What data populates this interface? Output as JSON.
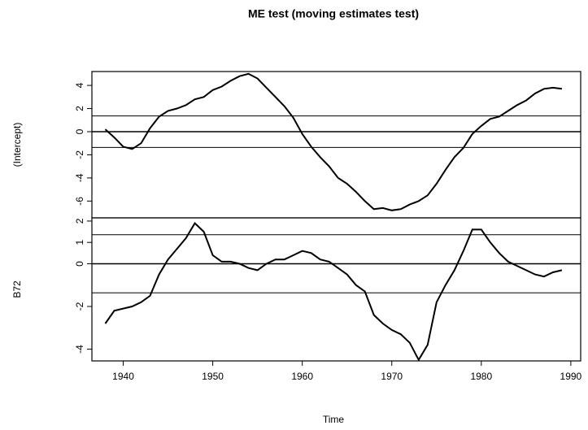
{
  "chart_data": [
    {
      "type": "line",
      "title": "ME test (moving estimates test)",
      "ylabel": "(Intercept)",
      "x": [
        1938,
        1939,
        1940,
        1941,
        1942,
        1943,
        1944,
        1945,
        1946,
        1947,
        1948,
        1949,
        1950,
        1951,
        1952,
        1953,
        1954,
        1955,
        1956,
        1957,
        1958,
        1959,
        1960,
        1961,
        1962,
        1963,
        1964,
        1965,
        1966,
        1967,
        1968,
        1969,
        1970,
        1971,
        1972,
        1973,
        1974,
        1975,
        1976,
        1977,
        1978,
        1979,
        1980,
        1981,
        1982,
        1983,
        1984,
        1985,
        1986,
        1987,
        1988,
        1989
      ],
      "series": [
        {
          "name": "(Intercept)",
          "color": "#000000",
          "values": [
            0.2,
            -0.5,
            -1.3,
            -1.5,
            -1.0,
            0.3,
            1.3,
            1.8,
            2.0,
            2.3,
            2.8,
            3.0,
            3.6,
            3.9,
            4.4,
            4.8,
            5.0,
            4.6,
            3.8,
            3.0,
            2.2,
            1.2,
            -0.2,
            -1.3,
            -2.2,
            -3.0,
            -4.0,
            -4.5,
            -5.2,
            -6.0,
            -6.7,
            -6.6,
            -6.8,
            -6.7,
            -6.3,
            -6.0,
            -5.5,
            -4.5,
            -3.3,
            -2.2,
            -1.4,
            -0.2,
            0.5,
            1.1,
            1.3,
            1.8,
            2.3,
            2.7,
            3.3,
            3.7,
            3.8,
            3.7
          ]
        }
      ],
      "hlines": [
        1.36,
        0,
        -1.36
      ],
      "xlim": [
        1936.5,
        1991.1
      ],
      "ylim": [
        -7.45,
        5.2
      ],
      "yticks": [
        -6,
        -4,
        -2,
        0,
        2,
        4
      ]
    },
    {
      "type": "line",
      "ylabel": "B72",
      "xlabel": "Time",
      "x": [
        1938,
        1939,
        1940,
        1941,
        1942,
        1943,
        1944,
        1945,
        1946,
        1947,
        1948,
        1949,
        1950,
        1951,
        1952,
        1953,
        1954,
        1955,
        1956,
        1957,
        1958,
        1959,
        1960,
        1961,
        1962,
        1963,
        1964,
        1965,
        1966,
        1967,
        1968,
        1969,
        1970,
        1971,
        1972,
        1973,
        1974,
        1975,
        1976,
        1977,
        1978,
        1979,
        1980,
        1981,
        1982,
        1983,
        1984,
        1985,
        1986,
        1987,
        1988,
        1989
      ],
      "series": [
        {
          "name": "B72",
          "color": "#000000",
          "values": [
            -2.8,
            -2.2,
            -2.1,
            -2.0,
            -1.8,
            -1.5,
            -0.5,
            0.2,
            0.7,
            1.2,
            1.9,
            1.5,
            0.4,
            0.1,
            0.1,
            0.0,
            -0.2,
            -0.3,
            0.0,
            0.2,
            0.2,
            0.4,
            0.6,
            0.5,
            0.2,
            0.1,
            -0.2,
            -0.5,
            -1.0,
            -1.3,
            -2.4,
            -2.8,
            -3.1,
            -3.3,
            -3.7,
            -4.5,
            -3.8,
            -1.8,
            -1.0,
            -0.3,
            0.6,
            1.6,
            1.6,
            1.0,
            0.5,
            0.1,
            -0.1,
            -0.3,
            -0.5,
            -0.6,
            -0.4,
            -0.3
          ]
        }
      ],
      "hlines": [
        1.36,
        0,
        -1.36
      ],
      "xlim": [
        1936.5,
        1991.1
      ],
      "xticks": [
        1940,
        1950,
        1960,
        1970,
        1980,
        1990
      ],
      "ylim": [
        -4.55,
        2.15
      ],
      "yticks": [
        -4,
        -2,
        0,
        1,
        2
      ]
    }
  ]
}
